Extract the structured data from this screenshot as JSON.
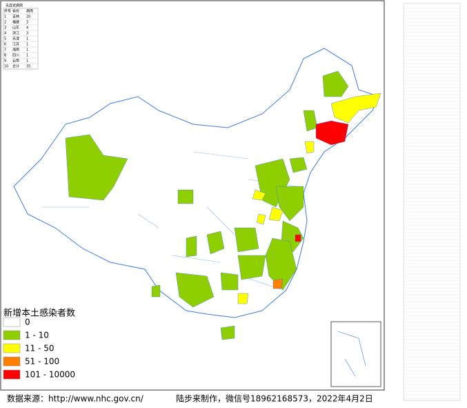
{
  "left_table": {
    "title": "无症状病例",
    "header": [
      "序号",
      "省份",
      "病例"
    ],
    "rows": [
      [
        "1",
        "吉林",
        "20"
      ],
      [
        "2",
        "福建",
        "3"
      ],
      [
        "3",
        "山东",
        "4"
      ],
      [
        "4",
        "浙江",
        "3"
      ],
      [
        "5",
        "天津",
        "1"
      ],
      [
        "6",
        "江苏",
        "1"
      ],
      [
        "7",
        "海南",
        "1"
      ],
      [
        "8",
        "四川",
        "1"
      ],
      [
        "9",
        "云南",
        "1"
      ],
      [
        "10",
        "合计",
        "35"
      ]
    ]
  },
  "legend": {
    "title": "新增本土感染者数",
    "items": [
      {
        "label": "0",
        "color": "#ffffff"
      },
      {
        "label": "1 - 10",
        "color": "#8fce00"
      },
      {
        "label": "11 - 50",
        "color": "#ffff00"
      },
      {
        "label": "51 - 100",
        "color": "#ff7f00"
      },
      {
        "label": "101 - 10000",
        "color": "#ff0000"
      }
    ]
  },
  "footer": {
    "source": "数据来源：http://www.nhc.gov.cn/",
    "credit": "陆步来制作，微信号18962168573，2022年4月2日"
  }
}
